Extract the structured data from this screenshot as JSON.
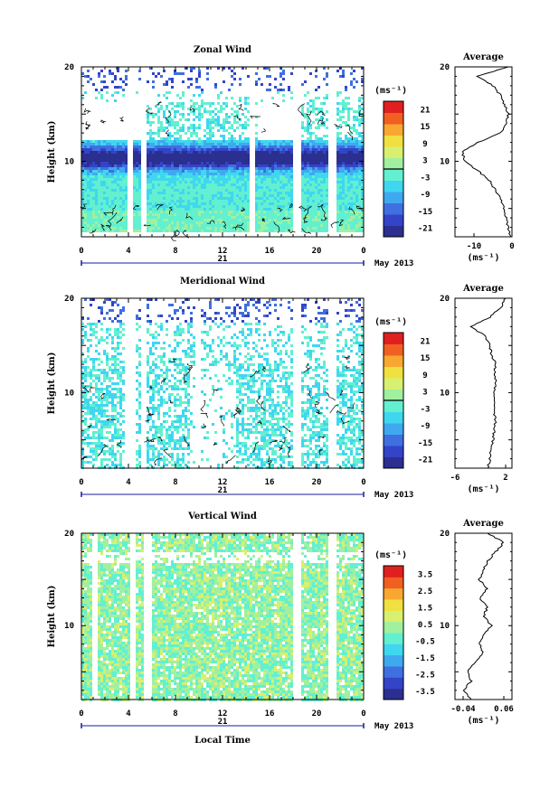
{
  "month_label": "May 2013",
  "date_label": "21",
  "xlabel": "Local Time",
  "unit_label": "(ms⁻¹)",
  "avg_title": "Average",
  "ylabel": "Height (km)",
  "x_ticks": [
    "0",
    "4",
    "8",
    "12",
    "16",
    "20",
    "0"
  ],
  "colorscale": [
    "#2b2f8f",
    "#3344c8",
    "#3f6fe0",
    "#3fa9f0",
    "#3fd7f0",
    "#62f0d0",
    "#a0f0a0",
    "#d8f070",
    "#f0e040",
    "#f8a830",
    "#f06020",
    "#e02020"
  ],
  "chart_data": [
    {
      "type": "heatmap",
      "title": "Zonal Wind",
      "ylabel": "Height (km)",
      "xlim_hours": [
        0,
        24
      ],
      "ylim_km": [
        2,
        20
      ],
      "y_ticks": [
        "20",
        "10"
      ],
      "color_range": [
        -24,
        24
      ],
      "colorbar_ticks": [
        "21",
        "15",
        "9",
        "3",
        "-3",
        "-9",
        "-15",
        "-21"
      ],
      "contour_level": 0,
      "data_gaps_hours": [
        [
          3.7,
          4.3
        ],
        [
          5.0,
          5.5
        ],
        [
          14.2,
          14.6
        ],
        [
          18.0,
          18.6
        ],
        [
          21.0,
          21.5
        ]
      ],
      "average_profile": {
        "title": "Average",
        "xlim": [
          -15,
          0
        ],
        "x_ticks": [
          "-10",
          "0"
        ],
        "x_unit": "(ms⁻¹)",
        "heights_km": [
          2,
          3,
          4,
          5,
          6,
          7,
          8,
          9,
          10,
          11,
          12,
          13,
          14,
          15,
          16,
          17,
          18,
          19,
          20
        ],
        "values": [
          -0.5,
          -1,
          -1.5,
          -2,
          -3,
          -4.5,
          -6,
          -9,
          -12.5,
          -13,
          -9,
          -3,
          -1.5,
          -1,
          -2,
          -3,
          -5,
          -9,
          -1
        ]
      }
    },
    {
      "type": "heatmap",
      "title": "Meridional Wind",
      "ylabel": "Height (km)",
      "xlim_hours": [
        0,
        24
      ],
      "ylim_km": [
        2,
        20
      ],
      "y_ticks": [
        "20",
        "10"
      ],
      "color_range": [
        -24,
        24
      ],
      "colorbar_ticks": [
        "21",
        "15",
        "9",
        "3",
        "-3",
        "-9",
        "-15",
        "-21"
      ],
      "contour_level": 0,
      "data_gaps_hours": [
        [
          3.6,
          4.4
        ],
        [
          5.0,
          5.4
        ],
        [
          9.5,
          10.1
        ],
        [
          18.0,
          18.5
        ],
        [
          21.0,
          21.6
        ]
      ],
      "average_profile": {
        "title": "Average",
        "xlim": [
          -6,
          3
        ],
        "x_ticks": [
          "-6",
          "2"
        ],
        "x_unit": "(ms⁻¹)",
        "heights_km": [
          2,
          3,
          4,
          5,
          6,
          7,
          8,
          9,
          10,
          11,
          12,
          13,
          14,
          15,
          16,
          17,
          18,
          19,
          20
        ],
        "values": [
          -0.8,
          -0.5,
          -0.3,
          0.0,
          0.2,
          0.4,
          0.1,
          0.3,
          0.2,
          0.5,
          0.3,
          0.4,
          -0.2,
          -0.5,
          -1.2,
          -3.5,
          -0.5,
          1.2,
          2.0
        ]
      }
    },
    {
      "type": "heatmap",
      "title": "Vertical Wind",
      "ylabel": "Height (km)",
      "xlabel": "Local Time",
      "xlim_hours": [
        0,
        24
      ],
      "ylim_km": [
        2,
        20
      ],
      "y_ticks": [
        "20",
        "10"
      ],
      "color_range": [
        -4,
        4
      ],
      "colorbar_ticks": [
        "3.5",
        "2.5",
        "1.5",
        "0.5",
        "-0.5",
        "-1.5",
        "-2.5",
        "-3.5"
      ],
      "data_gaps_hours": [
        [
          0.7,
          1.2
        ],
        [
          4.0,
          4.6
        ],
        [
          5.3,
          5.8
        ],
        [
          17.9,
          18.6
        ],
        [
          21.0,
          21.6
        ]
      ],
      "average_profile": {
        "title": "Average",
        "xlim": [
          -0.06,
          0.08
        ],
        "x_ticks": [
          "-0.04",
          "0.06"
        ],
        "x_unit": "(ms⁻¹)",
        "heights_km": [
          2,
          3,
          4,
          5,
          6,
          7,
          8,
          9,
          10,
          11,
          12,
          13,
          14,
          15,
          16,
          17,
          18,
          19,
          20
        ],
        "values": [
          -0.02,
          -0.04,
          -0.02,
          -0.03,
          -0.01,
          0.01,
          0.0,
          0.01,
          0.03,
          0.01,
          0.02,
          0.0,
          0.02,
          0.0,
          0.01,
          0.02,
          0.04,
          0.06,
          0.02
        ]
      }
    }
  ]
}
